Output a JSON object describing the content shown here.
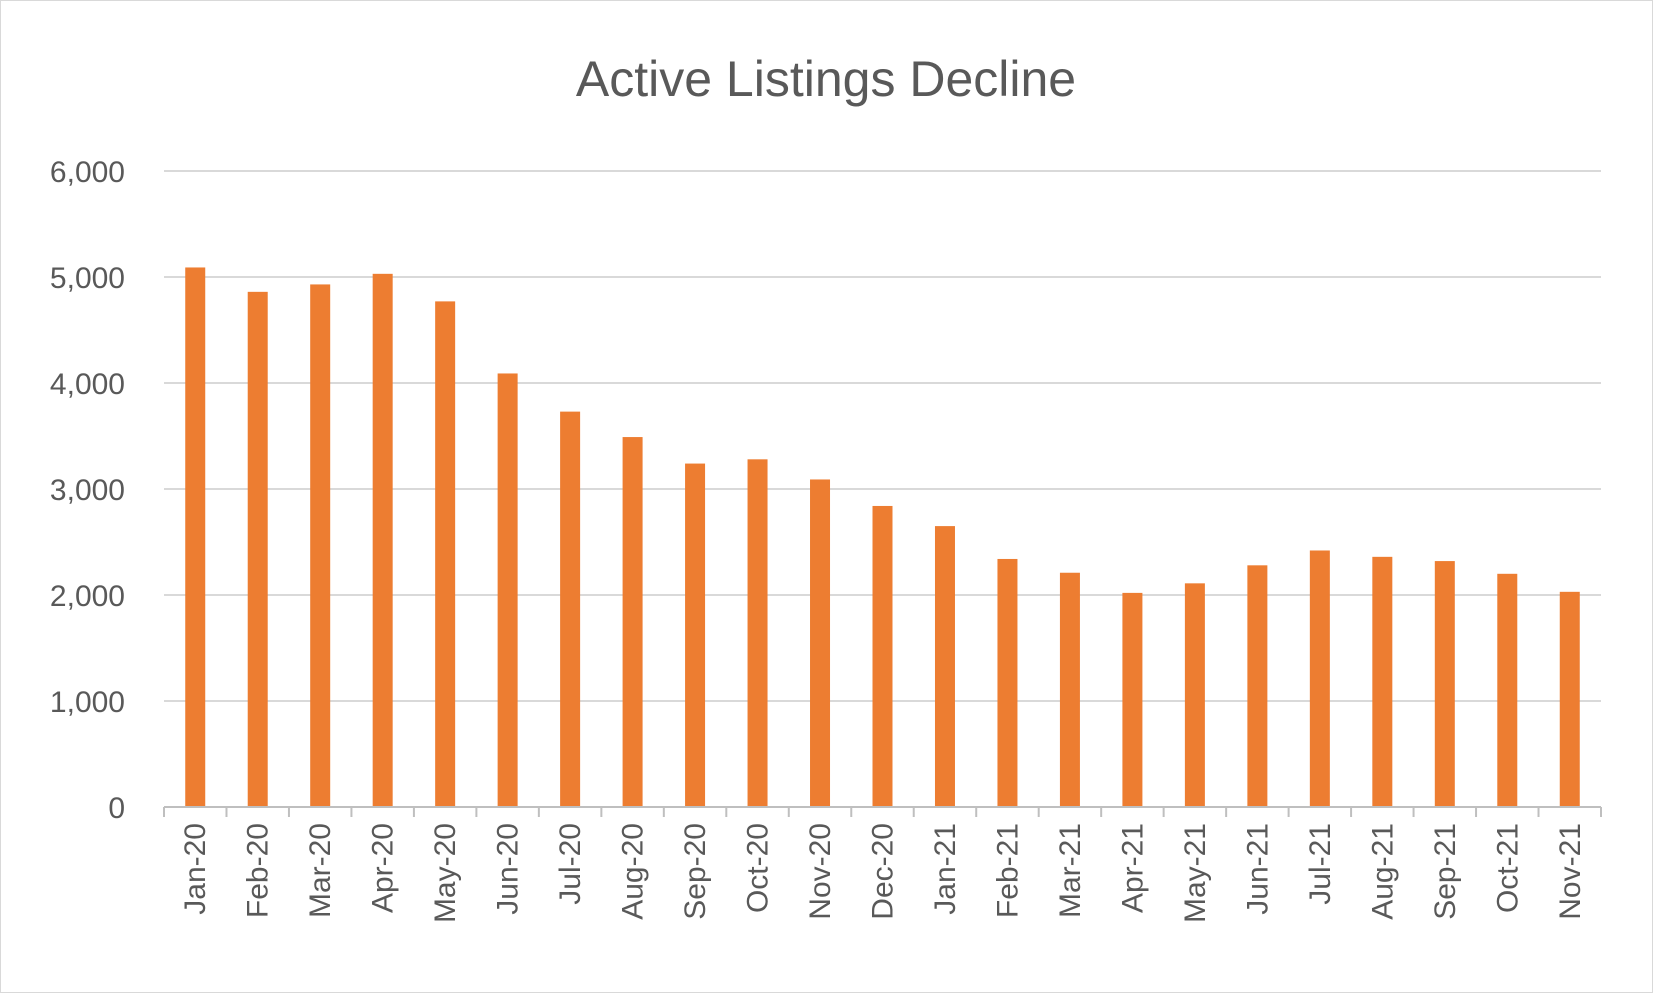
{
  "chart_data": {
    "type": "bar",
    "title": "Active Listings Decline",
    "xlabel": "",
    "ylabel": "",
    "categories": [
      "Jan-20",
      "Feb-20",
      "Mar-20",
      "Apr-20",
      "May-20",
      "Jun-20",
      "Jul-20",
      "Aug-20",
      "Sep-20",
      "Oct-20",
      "Nov-20",
      "Dec-20",
      "Jan-21",
      "Feb-21",
      "Mar-21",
      "Apr-21",
      "May-21",
      "Jun-21",
      "Jul-21",
      "Aug-21",
      "Sep-21",
      "Oct-21",
      "Nov-21"
    ],
    "values": [
      5090,
      4860,
      4930,
      5030,
      4770,
      4090,
      3730,
      3490,
      3240,
      3280,
      3090,
      2840,
      2650,
      2340,
      2210,
      2020,
      2110,
      2280,
      2420,
      2360,
      2320,
      2200,
      2030
    ],
    "ylim": [
      0,
      6000
    ],
    "yticks": [
      0,
      1000,
      2000,
      3000,
      4000,
      5000,
      6000
    ],
    "ytick_labels": [
      "0",
      "1,000",
      "2,000",
      "3,000",
      "4,000",
      "5,000",
      "6,000"
    ],
    "grid": true,
    "legend": "none",
    "bar_color": "#ED7D31"
  }
}
